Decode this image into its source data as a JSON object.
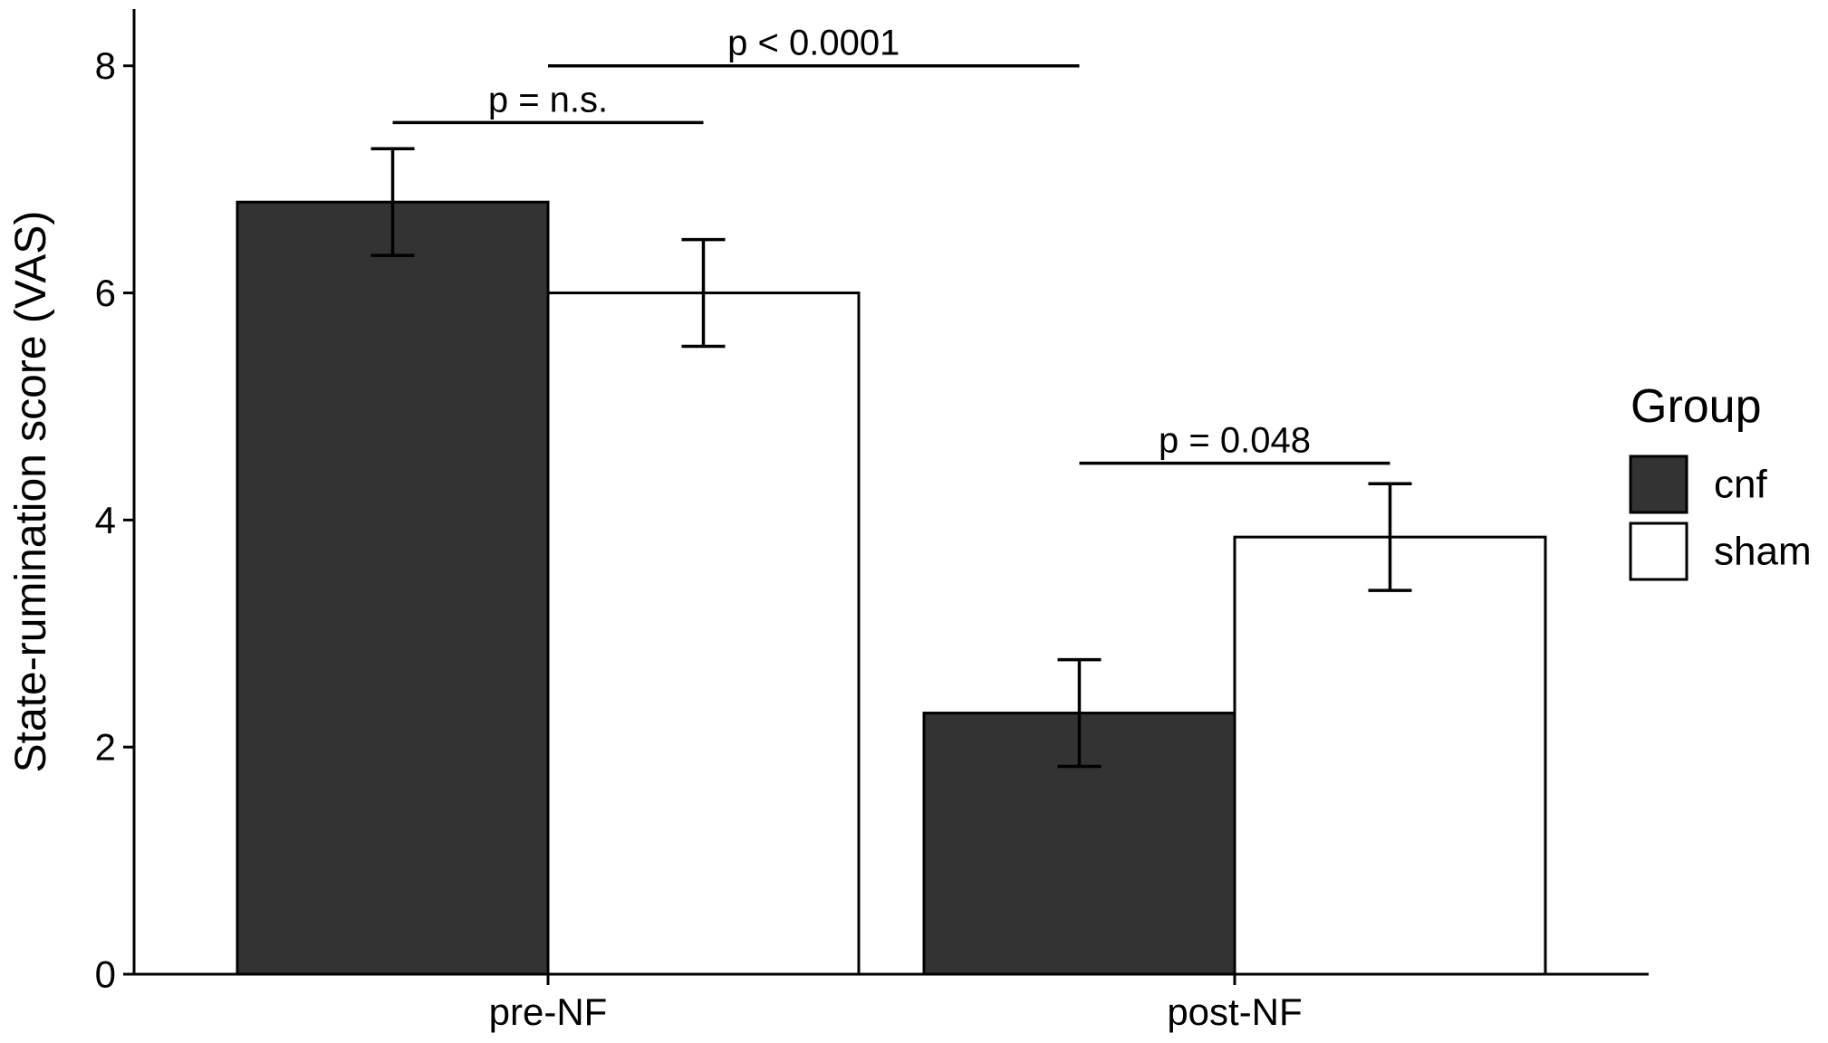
{
  "chart_data": {
    "type": "bar",
    "title": "",
    "xlabel": "",
    "ylabel": "State-rumination score (VAS)",
    "ylim": [
      0,
      8.5
    ],
    "yticks": [
      0,
      2,
      4,
      6,
      8
    ],
    "categories": [
      "pre-NF",
      "post-NF"
    ],
    "series": [
      {
        "name": "cnf",
        "color": "#333333",
        "values": [
          6.8,
          2.3
        ],
        "error": [
          0.47,
          0.47
        ]
      },
      {
        "name": "sham",
        "color": "#ffffff",
        "values": [
          6.0,
          3.85
        ],
        "error": [
          0.47,
          0.47
        ]
      }
    ],
    "legend": {
      "title": "Group",
      "position": "right"
    },
    "annotations": [
      {
        "label": "p = n.s.",
        "y": 7.5,
        "from": "pre-NF/cnf",
        "to": "pre-NF/sham"
      },
      {
        "label": "p < 0.0001",
        "y": 8.0,
        "from": "pre-NF/center",
        "to": "post-NF/cnf"
      },
      {
        "label": "p = 0.048",
        "y": 4.5,
        "from": "post-NF/cnf",
        "to": "post-NF/sham"
      }
    ],
    "grid": false
  }
}
